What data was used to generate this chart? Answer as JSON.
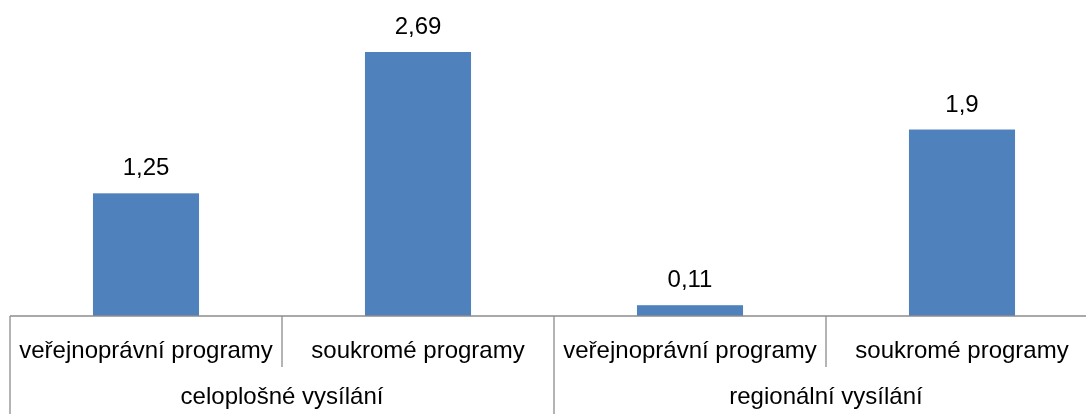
{
  "chart_data": {
    "type": "bar",
    "categories": [
      "veřejnoprávní programy",
      "soukromé programy",
      "veřejnoprávní programy",
      "soukromé programy"
    ],
    "values": [
      1.25,
      2.69,
      0.11,
      1.9
    ],
    "color": "#4f81bd",
    "value_labels": [
      "1,25",
      "2,69",
      "0,11",
      "1,9"
    ],
    "annotations": [
      "celoplošné vysílání",
      "regionální vysílání"
    ]
  }
}
